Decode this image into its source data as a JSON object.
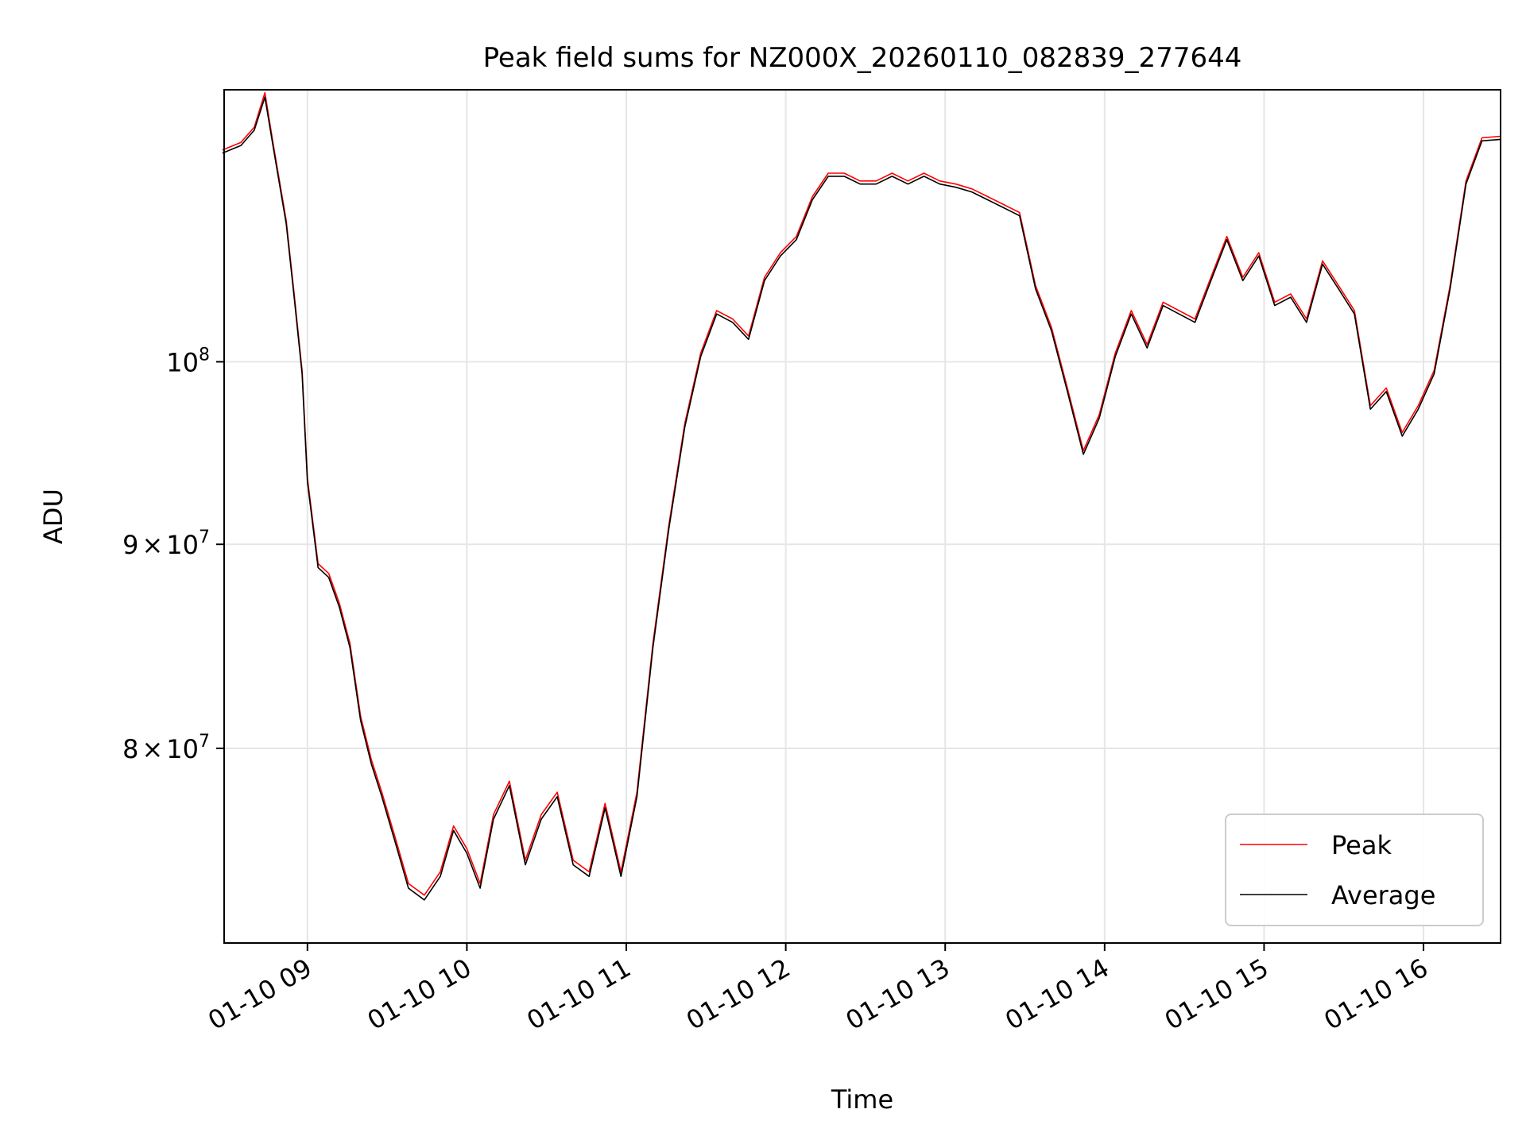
{
  "chart_data": {
    "type": "line",
    "title": "Peak field sums for NZ000X_20260110_082839_277644",
    "xlabel": "Time",
    "ylabel": "ADU",
    "x_axis": {
      "start": "2026-01-10 08:28:39",
      "end": "2026-01-10 16:29:00",
      "ticks": [
        {
          "time": "2026-01-10 09:00",
          "label": "01-10 09"
        },
        {
          "time": "2026-01-10 10:00",
          "label": "01-10 10"
        },
        {
          "time": "2026-01-10 11:00",
          "label": "01-10 11"
        },
        {
          "time": "2026-01-10 12:00",
          "label": "01-10 12"
        },
        {
          "time": "2026-01-10 13:00",
          "label": "01-10 13"
        },
        {
          "time": "2026-01-10 14:00",
          "label": "01-10 14"
        },
        {
          "time": "2026-01-10 15:00",
          "label": "01-10 15"
        },
        {
          "time": "2026-01-10 16:00",
          "label": "01-10 16"
        }
      ]
    },
    "y_axis": {
      "scale": "log",
      "ylim": [
        71500000,
        117000000
      ],
      "ticks": [
        {
          "value": 80000000,
          "mantissa": "8",
          "sep": "×",
          "base": "10",
          "exp": "7"
        },
        {
          "value": 90000000,
          "mantissa": "9",
          "sep": "×",
          "base": "10",
          "exp": "7"
        },
        {
          "value": 100000000,
          "mantissa": "",
          "sep": "",
          "base": "10",
          "exp": "8"
        }
      ]
    },
    "grid": true,
    "legend": {
      "placement": "lower-right",
      "entries": [
        {
          "label": "Peak",
          "color": "#ff0000"
        },
        {
          "label": "Average",
          "color": "#000000"
        }
      ]
    },
    "series": [
      {
        "name": "Peak",
        "color": "#ff0000",
        "x": [
          "2026-01-10 08:28",
          "2026-01-10 08:35",
          "2026-01-10 08:40",
          "2026-01-10 08:44",
          "2026-01-10 08:47",
          "2026-01-10 08:52",
          "2026-01-10 08:55",
          "2026-01-10 08:58",
          "2026-01-10 09:00",
          "2026-01-10 09:04",
          "2026-01-10 09:08",
          "2026-01-10 09:12",
          "2026-01-10 09:16",
          "2026-01-10 09:20",
          "2026-01-10 09:24",
          "2026-01-10 09:28",
          "2026-01-10 09:33",
          "2026-01-10 09:38",
          "2026-01-10 09:44",
          "2026-01-10 09:50",
          "2026-01-10 09:55",
          "2026-01-10 10:00",
          "2026-01-10 10:05",
          "2026-01-10 10:10",
          "2026-01-10 10:16",
          "2026-01-10 10:22",
          "2026-01-10 10:28",
          "2026-01-10 10:34",
          "2026-01-10 10:40",
          "2026-01-10 10:46",
          "2026-01-10 10:52",
          "2026-01-10 10:58",
          "2026-01-10 11:04",
          "2026-01-10 11:10",
          "2026-01-10 11:16",
          "2026-01-10 11:22",
          "2026-01-10 11:28",
          "2026-01-10 11:34",
          "2026-01-10 11:40",
          "2026-01-10 11:46",
          "2026-01-10 11:52",
          "2026-01-10 11:58",
          "2026-01-10 12:04",
          "2026-01-10 12:10",
          "2026-01-10 12:16",
          "2026-01-10 12:22",
          "2026-01-10 12:28",
          "2026-01-10 12:34",
          "2026-01-10 12:40",
          "2026-01-10 12:46",
          "2026-01-10 12:52",
          "2026-01-10 12:58",
          "2026-01-10 13:04",
          "2026-01-10 13:10",
          "2026-01-10 13:16",
          "2026-01-10 13:22",
          "2026-01-10 13:28",
          "2026-01-10 13:34",
          "2026-01-10 13:40",
          "2026-01-10 13:46",
          "2026-01-10 13:52",
          "2026-01-10 13:58",
          "2026-01-10 14:04",
          "2026-01-10 14:10",
          "2026-01-10 14:16",
          "2026-01-10 14:22",
          "2026-01-10 14:28",
          "2026-01-10 14:34",
          "2026-01-10 14:40",
          "2026-01-10 14:46",
          "2026-01-10 14:52",
          "2026-01-10 14:58",
          "2026-01-10 15:04",
          "2026-01-10 15:10",
          "2026-01-10 15:16",
          "2026-01-10 15:22",
          "2026-01-10 15:28",
          "2026-01-10 15:34",
          "2026-01-10 15:40",
          "2026-01-10 15:46",
          "2026-01-10 15:52",
          "2026-01-10 15:58",
          "2026-01-10 16:04",
          "2026-01-10 16:10",
          "2026-01-10 16:16",
          "2026-01-10 16:22",
          "2026-01-10 16:29"
        ],
        "values": [
          113000000,
          113500000,
          114500000,
          116800000,
          113500000,
          108500000,
          104000000,
          99500000,
          93500000,
          89000000,
          88500000,
          87000000,
          85000000,
          81500000,
          79500000,
          78000000,
          76000000,
          74000000,
          73500000,
          74500000,
          76500000,
          75500000,
          74000000,
          77000000,
          78500000,
          75000000,
          77000000,
          78000000,
          75000000,
          74500000,
          77500000,
          74500000,
          78000000,
          85000000,
          91000000,
          96500000,
          100500000,
          103000000,
          102500000,
          101500000,
          105000000,
          106500000,
          107500000,
          110000000,
          111500000,
          111500000,
          111000000,
          111000000,
          111500000,
          111000000,
          111500000,
          111000000,
          110800000,
          110500000,
          110000000,
          109500000,
          109000000,
          104500000,
          102000000,
          98500000,
          95000000,
          97000000,
          100500000,
          103000000,
          101000000,
          103500000,
          103000000,
          102500000,
          105000000,
          107500000,
          105000000,
          106500000,
          103500000,
          104000000,
          102500000,
          106000000,
          104500000,
          103000000,
          97500000,
          98500000,
          96000000,
          97500000,
          99500000,
          104500000,
          111000000,
          113800000,
          113900000
        ]
      },
      {
        "name": "Average",
        "color": "#000000",
        "x": [
          "2026-01-10 08:28",
          "2026-01-10 08:35",
          "2026-01-10 08:40",
          "2026-01-10 08:44",
          "2026-01-10 08:47",
          "2026-01-10 08:52",
          "2026-01-10 08:55",
          "2026-01-10 08:58",
          "2026-01-10 09:00",
          "2026-01-10 09:04",
          "2026-01-10 09:08",
          "2026-01-10 09:12",
          "2026-01-10 09:16",
          "2026-01-10 09:20",
          "2026-01-10 09:24",
          "2026-01-10 09:28",
          "2026-01-10 09:33",
          "2026-01-10 09:38",
          "2026-01-10 09:44",
          "2026-01-10 09:50",
          "2026-01-10 09:55",
          "2026-01-10 10:00",
          "2026-01-10 10:05",
          "2026-01-10 10:10",
          "2026-01-10 10:16",
          "2026-01-10 10:22",
          "2026-01-10 10:28",
          "2026-01-10 10:34",
          "2026-01-10 10:40",
          "2026-01-10 10:46",
          "2026-01-10 10:52",
          "2026-01-10 10:58",
          "2026-01-10 11:04",
          "2026-01-10 11:10",
          "2026-01-10 11:16",
          "2026-01-10 11:22",
          "2026-01-10 11:28",
          "2026-01-10 11:34",
          "2026-01-10 11:40",
          "2026-01-10 11:46",
          "2026-01-10 11:52",
          "2026-01-10 11:58",
          "2026-01-10 12:04",
          "2026-01-10 12:10",
          "2026-01-10 12:16",
          "2026-01-10 12:22",
          "2026-01-10 12:28",
          "2026-01-10 12:34",
          "2026-01-10 12:40",
          "2026-01-10 12:46",
          "2026-01-10 12:52",
          "2026-01-10 12:58",
          "2026-01-10 13:04",
          "2026-01-10 13:10",
          "2026-01-10 13:16",
          "2026-01-10 13:22",
          "2026-01-10 13:28",
          "2026-01-10 13:34",
          "2026-01-10 13:40",
          "2026-01-10 13:46",
          "2026-01-10 13:52",
          "2026-01-10 13:58",
          "2026-01-10 14:04",
          "2026-01-10 14:10",
          "2026-01-10 14:16",
          "2026-01-10 14:22",
          "2026-01-10 14:28",
          "2026-01-10 14:34",
          "2026-01-10 14:40",
          "2026-01-10 14:46",
          "2026-01-10 14:52",
          "2026-01-10 14:58",
          "2026-01-10 15:04",
          "2026-01-10 15:10",
          "2026-01-10 15:16",
          "2026-01-10 15:22",
          "2026-01-10 15:28",
          "2026-01-10 15:34",
          "2026-01-10 15:40",
          "2026-01-10 15:46",
          "2026-01-10 15:52",
          "2026-01-10 15:58",
          "2026-01-10 16:04",
          "2026-01-10 16:10",
          "2026-01-10 16:16",
          "2026-01-10 16:22",
          "2026-01-10 16:29"
        ],
        "values": [
          112800000,
          113300000,
          114300000,
          116500000,
          113300000,
          108300000,
          103800000,
          99300000,
          93300000,
          88800000,
          88300000,
          86800000,
          84800000,
          81300000,
          79300000,
          77800000,
          75800000,
          73800000,
          73300000,
          74300000,
          76300000,
          75300000,
          73800000,
          76800000,
          78300000,
          74800000,
          76800000,
          77800000,
          74800000,
          74300000,
          77300000,
          74300000,
          77800000,
          84800000,
          90800000,
          96300000,
          100300000,
          102800000,
          102300000,
          101300000,
          104800000,
          106300000,
          107300000,
          109800000,
          111300000,
          111300000,
          110800000,
          110800000,
          111300000,
          110800000,
          111300000,
          110800000,
          110600000,
          110300000,
          109800000,
          109300000,
          108800000,
          104300000,
          101800000,
          98300000,
          94800000,
          96800000,
          100300000,
          102800000,
          100800000,
          103300000,
          102800000,
          102300000,
          104800000,
          107300000,
          104800000,
          106300000,
          103300000,
          103800000,
          102300000,
          105800000,
          104300000,
          102800000,
          97300000,
          98300000,
          95800000,
          97300000,
          99300000,
          104300000,
          110800000,
          113600000,
          113700000
        ]
      }
    ]
  }
}
